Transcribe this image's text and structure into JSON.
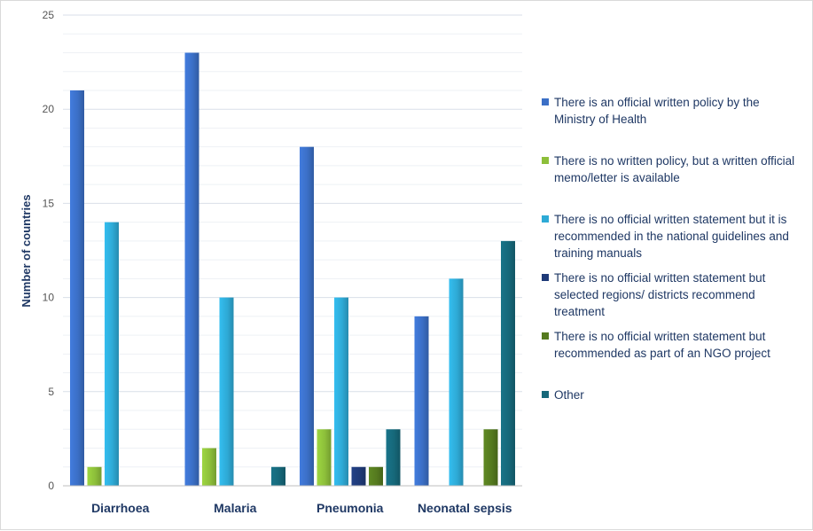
{
  "chart_data": {
    "type": "bar",
    "categories": [
      "Diarrhoea",
      "Malaria",
      "Pneumonia",
      "Neonatal sepsis"
    ],
    "ylabel": "Number of countries",
    "xlabel": "",
    "ylim": [
      0,
      25
    ],
    "yticks": [
      0,
      5,
      10,
      15,
      20,
      25
    ],
    "grid": true,
    "legend_position": "right",
    "series": [
      {
        "name": "There is an official written policy by the Ministry of Health",
        "color": "#3b6fc6",
        "values": [
          21,
          23,
          18,
          9
        ]
      },
      {
        "name": "There is no written policy, but a written official memo/letter is available",
        "color": "#8dbf3a",
        "values": [
          1,
          2,
          3,
          0
        ]
      },
      {
        "name": "There is no official written statement but it is recommended in the national guidelines and training manuals",
        "color": "#2eaad6",
        "values": [
          14,
          10,
          10,
          11
        ]
      },
      {
        "name": "There is no official written statement but selected regions/ districts recommend treatment",
        "color": "#1f3a78",
        "values": [
          0,
          0,
          1,
          0
        ]
      },
      {
        "name": "There is no official written statement but recommended as part of an NGO project",
        "color": "#557a1f",
        "values": [
          0,
          0,
          1,
          3
        ]
      },
      {
        "name": "Other",
        "color": "#16687a",
        "values": [
          0,
          1,
          3,
          13
        ]
      }
    ]
  }
}
